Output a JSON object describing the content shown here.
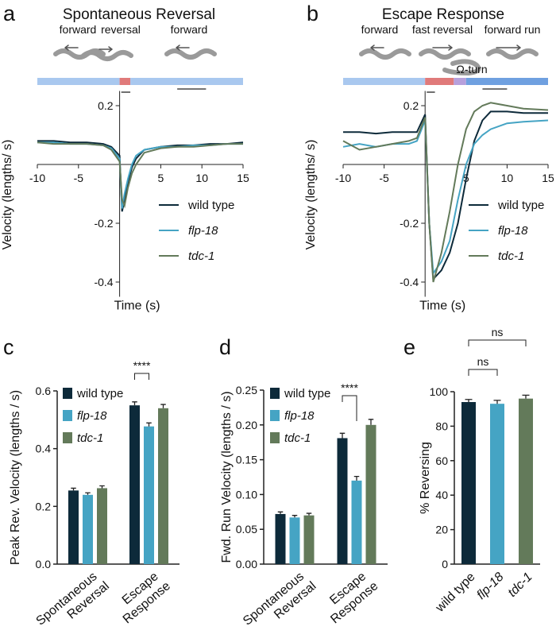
{
  "chart_data": [
    {
      "label": "a",
      "type": "line",
      "title": "Spontaneous Reversal",
      "behaviors": [
        "forward",
        "reversal",
        "forward"
      ],
      "xlabel": "Time (s)",
      "ylabel": "Velocity (lengths/ s)",
      "x": [
        -10,
        -8,
        -6,
        -4,
        -2,
        -1,
        0,
        0.3,
        0.6,
        1,
        1.5,
        2,
        3,
        5,
        7,
        9,
        11,
        13,
        15
      ],
      "series": [
        {
          "name": "wild type",
          "color": "#0d2a3a",
          "values": [
            0.08,
            0.08,
            0.075,
            0.075,
            0.07,
            0.06,
            0.03,
            -0.16,
            -0.12,
            -0.06,
            -0.01,
            0.02,
            0.05,
            0.06,
            0.065,
            0.065,
            0.07,
            0.07,
            0.075
          ]
        },
        {
          "name": "flp-18",
          "color": "#45a4c4",
          "values": [
            0.075,
            0.075,
            0.07,
            0.07,
            0.065,
            0.055,
            0.02,
            -0.15,
            -0.1,
            -0.05,
            0,
            0.03,
            0.05,
            0.06,
            0.06,
            0.065,
            0.065,
            0.07,
            0.07
          ]
        },
        {
          "name": "tdc-1",
          "color": "#637a5a",
          "values": [
            0.075,
            0.07,
            0.07,
            0.07,
            0.065,
            0.05,
            0.01,
            -0.12,
            -0.14,
            -0.08,
            -0.03,
            0,
            0.04,
            0.055,
            0.06,
            0.06,
            0.065,
            0.07,
            0.07
          ]
        }
      ],
      "xlim": [
        -10,
        15
      ],
      "xticks": [
        -10,
        -5,
        5,
        10,
        15
      ],
      "ylim": [
        -0.45,
        0.25
      ],
      "yticks": [
        -0.4,
        -0.2,
        0.2
      ],
      "legend": "lower right"
    },
    {
      "label": "b",
      "type": "line",
      "title": "Escape Response",
      "behaviors": [
        "forward",
        "fast reversal",
        "Ω-turn",
        "forward run"
      ],
      "xlabel": "Time (s)",
      "ylabel": "Velocity (lengths/ s)",
      "x": [
        -10,
        -8,
        -6,
        -4,
        -2,
        -1,
        0,
        0.5,
        1,
        2,
        3,
        4,
        5,
        6,
        7,
        8,
        10,
        12,
        15
      ],
      "series": [
        {
          "name": "wild type",
          "color": "#0d2a3a",
          "values": [
            0.11,
            0.11,
            0.105,
            0.11,
            0.11,
            0.11,
            0.17,
            -0.2,
            -0.39,
            -0.36,
            -0.3,
            -0.2,
            -0.05,
            0.08,
            0.15,
            0.18,
            0.18,
            0.175,
            0.175
          ]
        },
        {
          "name": "flp-18",
          "color": "#45a4c4",
          "values": [
            0.06,
            0.07,
            0.06,
            0.07,
            0.07,
            0.08,
            0.15,
            -0.2,
            -0.37,
            -0.33,
            -0.26,
            -0.12,
            0,
            0.07,
            0.1,
            0.12,
            0.14,
            0.145,
            0.15
          ]
        },
        {
          "name": "tdc-1",
          "color": "#637a5a",
          "values": [
            0.08,
            0.05,
            0.06,
            0.07,
            0.08,
            0.09,
            0.16,
            -0.2,
            -0.4,
            -0.3,
            -0.16,
            0,
            0.12,
            0.18,
            0.2,
            0.21,
            0.2,
            0.19,
            0.185
          ]
        }
      ],
      "xlim": [
        -10,
        15
      ],
      "xticks": [
        -10,
        -5,
        5,
        10,
        15
      ],
      "ylim": [
        -0.45,
        0.25
      ],
      "yticks": [
        -0.4,
        -0.2,
        0.2
      ],
      "legend": "lower right"
    },
    {
      "label": "c",
      "type": "bar",
      "ylabel": "Peak Rev. Velocity (lengths / s)",
      "categories": [
        "Spontaneous Reversal",
        "Escape Response"
      ],
      "series": [
        {
          "name": "wild type",
          "color": "#0d2a3a",
          "values": [
            0.255,
            0.55
          ],
          "errors": [
            0.008,
            0.012
          ]
        },
        {
          "name": "flp-18",
          "color": "#45a4c4",
          "values": [
            0.24,
            0.477
          ],
          "errors": [
            0.007,
            0.012
          ]
        },
        {
          "name": "tdc-1",
          "color": "#637a5a",
          "values": [
            0.263,
            0.54
          ],
          "errors": [
            0.008,
            0.013
          ]
        }
      ],
      "ylim": [
        0,
        0.6
      ],
      "yticks": [
        {
          "value": 0,
          "label": "0.0"
        },
        0.2,
        0.4,
        0.6
      ],
      "legend": "upper left",
      "significance": "****"
    },
    {
      "label": "d",
      "type": "bar",
      "ylabel": "Fwd. Run Velocity (lengths / s)",
      "categories": [
        "Spontaneous Reversal",
        "Escape Response"
      ],
      "series": [
        {
          "name": "wild type",
          "color": "#0d2a3a",
          "values": [
            0.072,
            0.181
          ],
          "errors": [
            0.003,
            0.007
          ]
        },
        {
          "name": "flp-18",
          "color": "#45a4c4",
          "values": [
            0.067,
            0.12
          ],
          "errors": [
            0.003,
            0.006
          ]
        },
        {
          "name": "tdc-1",
          "color": "#637a5a",
          "values": [
            0.07,
            0.2
          ],
          "errors": [
            0.003,
            0.008
          ]
        }
      ],
      "ylim": [
        0,
        0.25
      ],
      "yticks": [
        {
          "value": 0,
          "label": "0.00"
        },
        0.05,
        {
          "value": 0.1,
          "label": "0.10"
        },
        0.15,
        {
          "value": 0.2,
          "label": "0.20"
        },
        0.25
      ],
      "legend": "upper left",
      "significance": "****"
    },
    {
      "label": "e",
      "type": "bar",
      "ylabel": "% Reversing",
      "categories": [
        "wild type",
        "flp-18",
        "tdc-1"
      ],
      "values": [
        94,
        93,
        96
      ],
      "errors": [
        1.5,
        2,
        2
      ],
      "colors": [
        "#0d2a3a",
        "#45a4c4",
        "#637a5a"
      ],
      "ylim": [
        0,
        100
      ],
      "yticks": [
        0,
        20,
        40,
        60,
        80,
        100
      ],
      "significance": [
        "ns",
        "ns"
      ]
    }
  ]
}
